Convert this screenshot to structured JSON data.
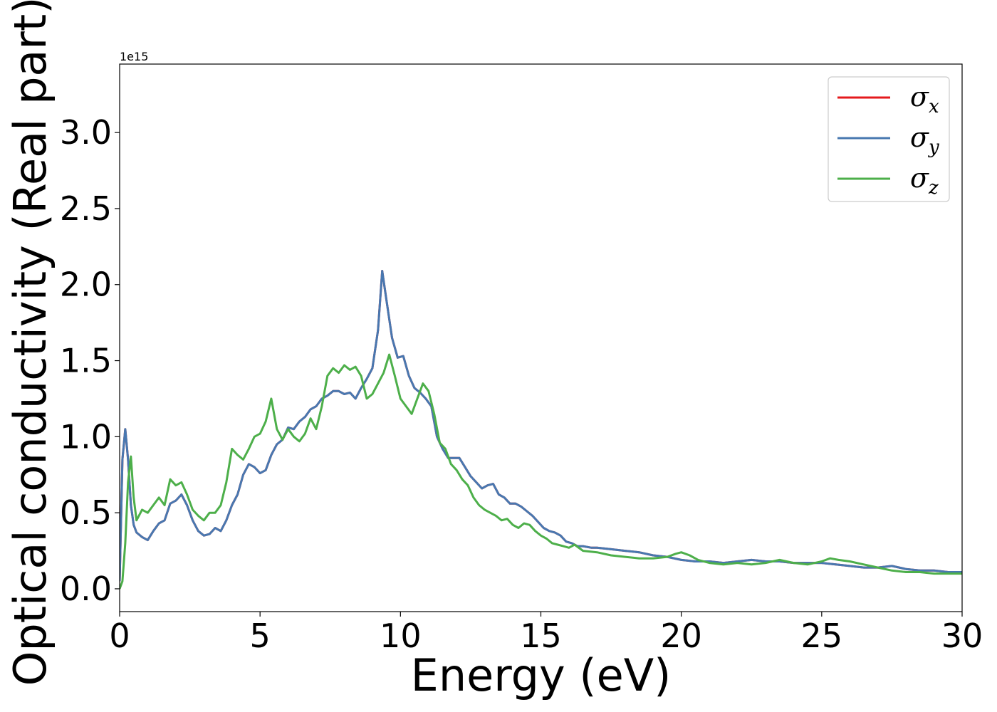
{
  "chart_data": {
    "type": "line",
    "xlabel": "Energy (eV)",
    "ylabel": "Optical conductivity (Real part)",
    "y_offset_text": "1e15",
    "xlim": [
      0,
      30
    ],
    "ylim": [
      -0.15,
      3.45
    ],
    "xticks": [
      0,
      5,
      10,
      15,
      20,
      25,
      30
    ],
    "xtick_labels": [
      "0",
      "5",
      "10",
      "15",
      "20",
      "25",
      "30"
    ],
    "yticks": [
      0.0,
      0.5,
      1.0,
      1.5,
      2.0,
      2.5,
      3.0
    ],
    "ytick_labels": [
      "0.0",
      "0.5",
      "1.0",
      "1.5",
      "2.0",
      "2.5",
      "3.0"
    ],
    "grid": false,
    "legend_position": "top-right",
    "series": [
      {
        "name": "σ",
        "sub": "x",
        "color": "#e41a1c",
        "x": [
          0,
          0.1,
          0.2,
          0.3,
          0.4,
          0.5,
          0.6,
          0.8,
          1.0,
          1.2,
          1.4,
          1.6,
          1.8,
          2.0,
          2.2,
          2.4,
          2.6,
          2.8,
          3.0,
          3.2,
          3.4,
          3.6,
          3.8,
          4.0,
          4.2,
          4.4,
          4.6,
          4.8,
          5.0,
          5.2,
          5.4,
          5.6,
          5.8,
          6.0,
          6.2,
          6.4,
          6.6,
          6.8,
          7.0,
          7.2,
          7.4,
          7.6,
          7.8,
          8.0,
          8.2,
          8.4,
          8.6,
          8.8,
          9.0,
          9.2,
          9.35,
          9.5,
          9.7,
          9.9,
          10.1,
          10.3,
          10.5,
          10.7,
          10.9,
          11.1,
          11.3,
          11.5,
          11.7,
          11.9,
          12.1,
          12.3,
          12.5,
          12.7,
          12.9,
          13.1,
          13.3,
          13.5,
          13.7,
          13.9,
          14.1,
          14.3,
          14.5,
          14.7,
          14.9,
          15.1,
          15.3,
          15.5,
          15.7,
          15.9,
          16.1,
          16.3,
          16.5,
          16.8,
          17.0,
          17.5,
          18.0,
          18.5,
          19.0,
          19.5,
          20.0,
          20.5,
          21.0,
          21.5,
          22.0,
          22.5,
          23.0,
          23.5,
          24.0,
          24.5,
          25.0,
          25.5,
          26.0,
          26.5,
          27.0,
          27.5,
          28.0,
          28.5,
          29.0,
          29.5,
          30.0
        ],
        "y": [
          0.05,
          0.85,
          1.05,
          0.85,
          0.55,
          0.42,
          0.37,
          0.34,
          0.32,
          0.38,
          0.43,
          0.45,
          0.56,
          0.58,
          0.62,
          0.55,
          0.45,
          0.38,
          0.35,
          0.36,
          0.4,
          0.38,
          0.45,
          0.55,
          0.62,
          0.75,
          0.82,
          0.8,
          0.76,
          0.78,
          0.88,
          0.95,
          0.98,
          1.06,
          1.05,
          1.1,
          1.13,
          1.18,
          1.2,
          1.25,
          1.27,
          1.3,
          1.3,
          1.28,
          1.29,
          1.25,
          1.32,
          1.38,
          1.45,
          1.7,
          2.09,
          1.9,
          1.65,
          1.52,
          1.53,
          1.4,
          1.32,
          1.29,
          1.25,
          1.2,
          1.0,
          0.92,
          0.86,
          0.86,
          0.86,
          0.8,
          0.74,
          0.7,
          0.66,
          0.68,
          0.69,
          0.62,
          0.6,
          0.56,
          0.56,
          0.54,
          0.51,
          0.48,
          0.44,
          0.4,
          0.38,
          0.37,
          0.35,
          0.31,
          0.3,
          0.28,
          0.28,
          0.27,
          0.27,
          0.26,
          0.25,
          0.24,
          0.22,
          0.21,
          0.19,
          0.18,
          0.18,
          0.17,
          0.18,
          0.19,
          0.18,
          0.18,
          0.17,
          0.17,
          0.17,
          0.16,
          0.15,
          0.14,
          0.14,
          0.15,
          0.13,
          0.12,
          0.12,
          0.11,
          0.11
        ]
      },
      {
        "name": "σ",
        "sub": "y",
        "color": "#4878b0",
        "x": [
          0,
          0.1,
          0.2,
          0.3,
          0.4,
          0.5,
          0.6,
          0.8,
          1.0,
          1.2,
          1.4,
          1.6,
          1.8,
          2.0,
          2.2,
          2.4,
          2.6,
          2.8,
          3.0,
          3.2,
          3.4,
          3.6,
          3.8,
          4.0,
          4.2,
          4.4,
          4.6,
          4.8,
          5.0,
          5.2,
          5.4,
          5.6,
          5.8,
          6.0,
          6.2,
          6.4,
          6.6,
          6.8,
          7.0,
          7.2,
          7.4,
          7.6,
          7.8,
          8.0,
          8.2,
          8.4,
          8.6,
          8.8,
          9.0,
          9.2,
          9.35,
          9.5,
          9.7,
          9.9,
          10.1,
          10.3,
          10.5,
          10.7,
          10.9,
          11.1,
          11.3,
          11.5,
          11.7,
          11.9,
          12.1,
          12.3,
          12.5,
          12.7,
          12.9,
          13.1,
          13.3,
          13.5,
          13.7,
          13.9,
          14.1,
          14.3,
          14.5,
          14.7,
          14.9,
          15.1,
          15.3,
          15.5,
          15.7,
          15.9,
          16.1,
          16.3,
          16.5,
          16.8,
          17.0,
          17.5,
          18.0,
          18.5,
          19.0,
          19.5,
          20.0,
          20.5,
          21.0,
          21.5,
          22.0,
          22.5,
          23.0,
          23.5,
          24.0,
          24.5,
          25.0,
          25.5,
          26.0,
          26.5,
          27.0,
          27.5,
          28.0,
          28.5,
          29.0,
          29.5,
          30.0
        ],
        "y": [
          0.05,
          0.85,
          1.05,
          0.85,
          0.55,
          0.42,
          0.37,
          0.34,
          0.32,
          0.38,
          0.43,
          0.45,
          0.56,
          0.58,
          0.62,
          0.55,
          0.45,
          0.38,
          0.35,
          0.36,
          0.4,
          0.38,
          0.45,
          0.55,
          0.62,
          0.75,
          0.82,
          0.8,
          0.76,
          0.78,
          0.88,
          0.95,
          0.98,
          1.06,
          1.05,
          1.1,
          1.13,
          1.18,
          1.2,
          1.25,
          1.27,
          1.3,
          1.3,
          1.28,
          1.29,
          1.25,
          1.32,
          1.38,
          1.45,
          1.7,
          2.09,
          1.9,
          1.65,
          1.52,
          1.53,
          1.4,
          1.32,
          1.29,
          1.25,
          1.2,
          1.0,
          0.92,
          0.86,
          0.86,
          0.86,
          0.8,
          0.74,
          0.7,
          0.66,
          0.68,
          0.69,
          0.62,
          0.6,
          0.56,
          0.56,
          0.54,
          0.51,
          0.48,
          0.44,
          0.4,
          0.38,
          0.37,
          0.35,
          0.31,
          0.3,
          0.28,
          0.28,
          0.27,
          0.27,
          0.26,
          0.25,
          0.24,
          0.22,
          0.21,
          0.19,
          0.18,
          0.18,
          0.17,
          0.18,
          0.19,
          0.18,
          0.18,
          0.17,
          0.17,
          0.17,
          0.16,
          0.15,
          0.14,
          0.14,
          0.15,
          0.13,
          0.12,
          0.12,
          0.11,
          0.11
        ]
      },
      {
        "name": "σ",
        "sub": "z",
        "color": "#4daf4a",
        "x": [
          0,
          0.1,
          0.2,
          0.3,
          0.4,
          0.5,
          0.6,
          0.8,
          1.0,
          1.2,
          1.4,
          1.6,
          1.8,
          2.0,
          2.2,
          2.4,
          2.6,
          2.8,
          3.0,
          3.2,
          3.4,
          3.6,
          3.8,
          4.0,
          4.2,
          4.4,
          4.6,
          4.8,
          5.0,
          5.2,
          5.4,
          5.6,
          5.8,
          6.0,
          6.2,
          6.4,
          6.6,
          6.8,
          7.0,
          7.2,
          7.4,
          7.6,
          7.8,
          8.0,
          8.2,
          8.4,
          8.6,
          8.8,
          9.0,
          9.2,
          9.4,
          9.6,
          9.8,
          10.0,
          10.2,
          10.4,
          10.6,
          10.8,
          11.0,
          11.2,
          11.4,
          11.6,
          11.8,
          12.0,
          12.2,
          12.4,
          12.6,
          12.8,
          13.0,
          13.2,
          13.4,
          13.6,
          13.8,
          14.0,
          14.2,
          14.4,
          14.6,
          14.8,
          15.0,
          15.2,
          15.4,
          15.6,
          15.8,
          16.0,
          16.2,
          16.5,
          17.0,
          17.5,
          18.0,
          18.5,
          19.0,
          19.5,
          19.8,
          20.0,
          20.3,
          20.6,
          21.0,
          21.5,
          22.0,
          22.5,
          23.0,
          23.5,
          24.0,
          24.5,
          25.0,
          25.3,
          25.6,
          26.0,
          26.5,
          27.0,
          27.5,
          28.0,
          28.5,
          29.0,
          29.5,
          30.0
        ],
        "y": [
          0.0,
          0.05,
          0.3,
          0.7,
          0.87,
          0.6,
          0.45,
          0.52,
          0.5,
          0.55,
          0.6,
          0.55,
          0.72,
          0.68,
          0.7,
          0.62,
          0.52,
          0.48,
          0.45,
          0.5,
          0.5,
          0.55,
          0.7,
          0.92,
          0.88,
          0.85,
          0.92,
          1.0,
          1.02,
          1.1,
          1.25,
          1.05,
          0.98,
          1.05,
          1.0,
          0.97,
          1.02,
          1.12,
          1.05,
          1.2,
          1.4,
          1.45,
          1.42,
          1.47,
          1.44,
          1.46,
          1.4,
          1.25,
          1.28,
          1.35,
          1.42,
          1.54,
          1.4,
          1.25,
          1.2,
          1.15,
          1.25,
          1.35,
          1.3,
          1.15,
          0.96,
          0.92,
          0.82,
          0.78,
          0.72,
          0.68,
          0.6,
          0.55,
          0.52,
          0.5,
          0.48,
          0.45,
          0.46,
          0.42,
          0.4,
          0.43,
          0.42,
          0.38,
          0.35,
          0.33,
          0.3,
          0.29,
          0.28,
          0.27,
          0.29,
          0.25,
          0.24,
          0.22,
          0.21,
          0.2,
          0.2,
          0.21,
          0.23,
          0.24,
          0.22,
          0.19,
          0.17,
          0.16,
          0.17,
          0.16,
          0.17,
          0.19,
          0.17,
          0.16,
          0.18,
          0.2,
          0.19,
          0.18,
          0.16,
          0.14,
          0.12,
          0.11,
          0.11,
          0.1,
          0.1,
          0.1
        ]
      }
    ]
  }
}
